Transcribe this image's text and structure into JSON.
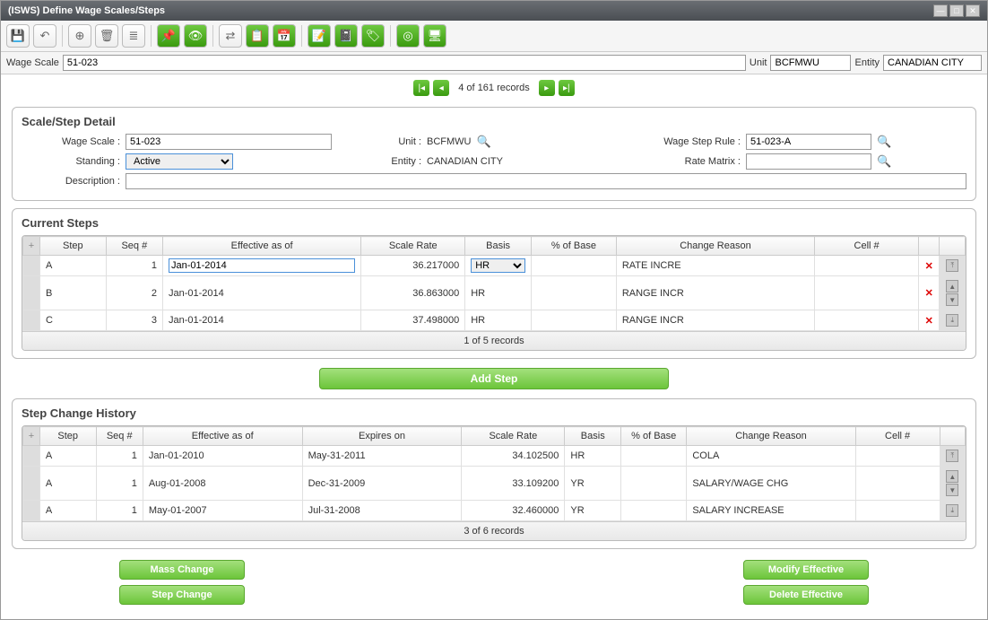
{
  "window": {
    "title": "(ISWS) Define Wage Scales/Steps"
  },
  "filter": {
    "wage_scale_label": "Wage Scale",
    "wage_scale_value": "51-023",
    "unit_label": "Unit",
    "unit_value": "BCFMWU",
    "entity_label": "Entity",
    "entity_value": "CANADIAN CITY"
  },
  "pager_top": {
    "text": "4 of 161 records"
  },
  "detail": {
    "title": "Scale/Step Detail",
    "wage_scale_label": "Wage Scale :",
    "wage_scale_value": "51-023",
    "standing_label": "Standing :",
    "standing_value": "Active",
    "unit_label": "Unit :",
    "unit_value": "BCFMWU",
    "entity_label": "Entity :",
    "entity_value": "CANADIAN CITY",
    "wage_step_rule_label": "Wage Step Rule :",
    "wage_step_rule_value": "51-023-A",
    "rate_matrix_label": "Rate Matrix :",
    "rate_matrix_value": "",
    "description_label": "Description :",
    "description_value": ""
  },
  "current_steps": {
    "title": "Current Steps",
    "columns": [
      "Step",
      "Seq #",
      "Effective as of",
      "Scale Rate",
      "Basis",
      "% of Base",
      "Change Reason",
      "Cell #"
    ],
    "rows": [
      {
        "step": "A",
        "seq": "1",
        "eff": "Jan-01-2014",
        "rate": "36.217000",
        "basis": "HR",
        "pct": "",
        "reason": "RATE INCRE",
        "cell": "",
        "editable": true
      },
      {
        "step": "B",
        "seq": "2",
        "eff": "Jan-01-2014",
        "rate": "36.863000",
        "basis": "HR",
        "pct": "",
        "reason": "RANGE INCR",
        "cell": "",
        "editable": false
      },
      {
        "step": "C",
        "seq": "3",
        "eff": "Jan-01-2014",
        "rate": "37.498000",
        "basis": "HR",
        "pct": "",
        "reason": "RANGE INCR",
        "cell": "",
        "editable": false
      }
    ],
    "footer": "1 of 5 records"
  },
  "add_step_label": "Add Step",
  "history": {
    "title": "Step Change History",
    "columns": [
      "Step",
      "Seq #",
      "Effective as of",
      "Expires on",
      "Scale Rate",
      "Basis",
      "% of Base",
      "Change Reason",
      "Cell #"
    ],
    "rows": [
      {
        "step": "A",
        "seq": "1",
        "eff": "Jan-01-2010",
        "exp": "May-31-2011",
        "rate": "34.102500",
        "basis": "HR",
        "pct": "",
        "reason": "COLA",
        "cell": ""
      },
      {
        "step": "A",
        "seq": "1",
        "eff": "Aug-01-2008",
        "exp": "Dec-31-2009",
        "rate": "33.109200",
        "basis": "YR",
        "pct": "",
        "reason": "SALARY/WAGE CHG",
        "cell": ""
      },
      {
        "step": "A",
        "seq": "1",
        "eff": "May-01-2007",
        "exp": "Jul-31-2008",
        "rate": "32.460000",
        "basis": "YR",
        "pct": "",
        "reason": "SALARY INCREASE",
        "cell": ""
      }
    ],
    "footer": "3 of 6 records"
  },
  "actions": {
    "mass_change": "Mass Change",
    "step_change": "Step Change",
    "modify_effective": "Modify Effective",
    "delete_effective": "Delete Effective"
  },
  "colors": {
    "green_light": "#a3e07c",
    "green_dark": "#3a9a0f",
    "border": "#bbbbbb"
  }
}
